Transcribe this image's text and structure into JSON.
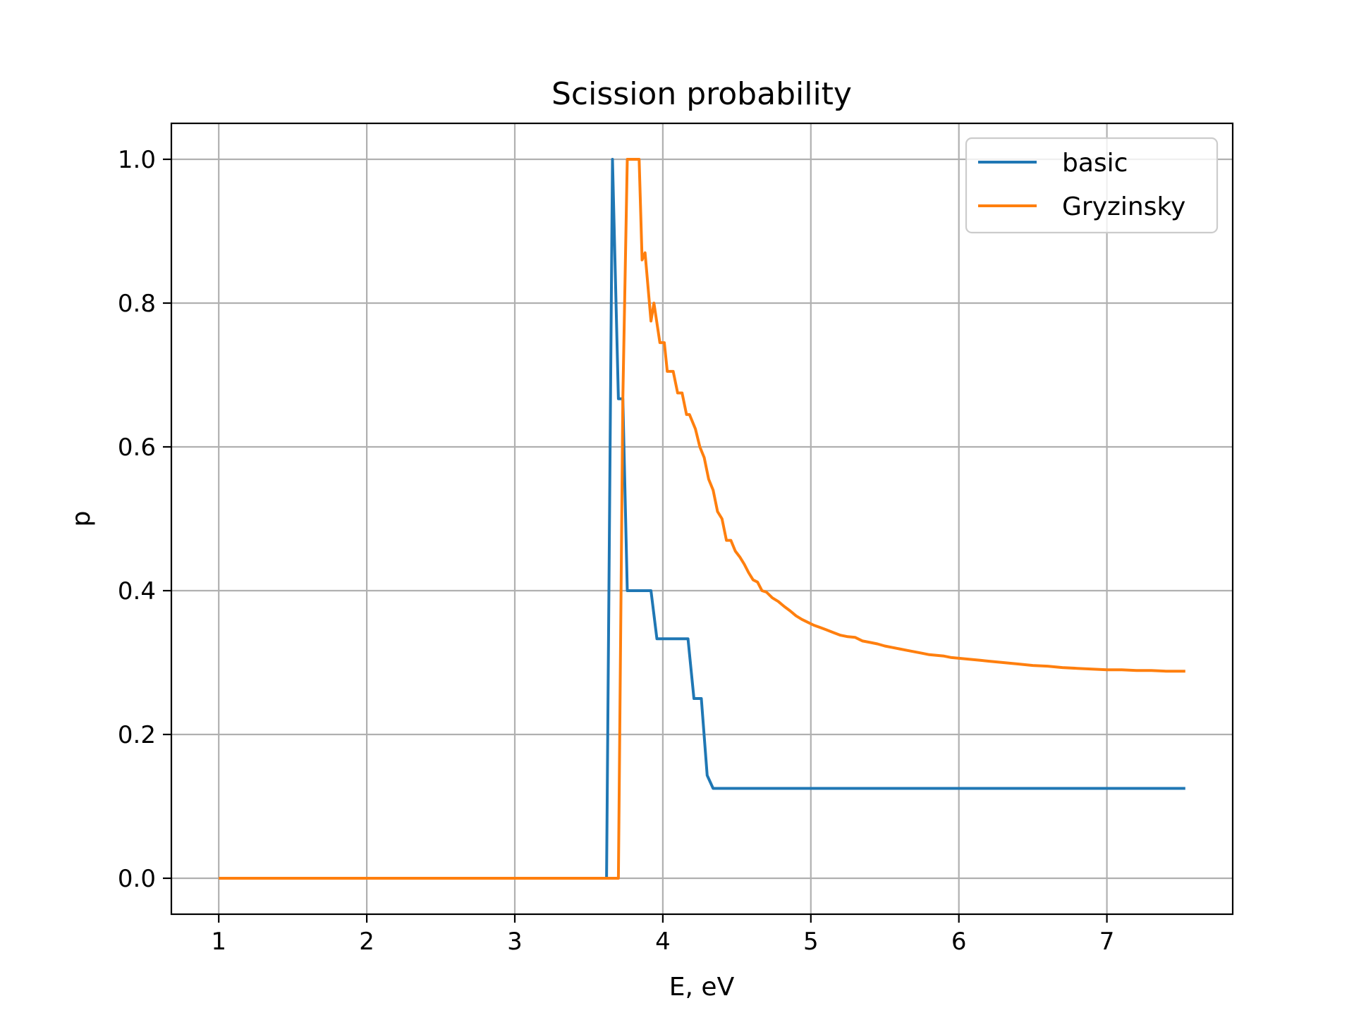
{
  "chart_data": {
    "type": "line",
    "title": "Scission probability",
    "xlabel": "E, eV",
    "ylabel": "p",
    "xlim": [
      0.68,
      7.85
    ],
    "ylim": [
      -0.05,
      1.05
    ],
    "x_ticks": [
      1,
      2,
      3,
      4,
      5,
      6,
      7
    ],
    "x_tick_labels": [
      "1",
      "2",
      "3",
      "4",
      "5",
      "6",
      "7"
    ],
    "y_ticks": [
      0.0,
      0.2,
      0.4,
      0.6,
      0.8,
      1.0
    ],
    "y_tick_labels": [
      "0.0",
      "0.2",
      "0.4",
      "0.6",
      "0.8",
      "1.0"
    ],
    "grid": true,
    "legend": {
      "position": "top-right",
      "entries": [
        "basic",
        "Gryzinsky"
      ]
    },
    "series": [
      {
        "name": "basic",
        "color": "#1f77b4",
        "x": [
          1.0,
          3.62,
          3.66,
          3.7,
          3.73,
          3.76,
          3.92,
          3.96,
          4.17,
          4.21,
          4.26,
          4.3,
          4.34,
          7.53
        ],
        "y": [
          0.0,
          0.0,
          1.0,
          0.667,
          0.667,
          0.4,
          0.4,
          0.333,
          0.333,
          0.25,
          0.25,
          0.143,
          0.125,
          0.125
        ]
      },
      {
        "name": "Gryzinsky",
        "color": "#ff7f0e",
        "x": [
          1.0,
          3.7,
          3.73,
          3.76,
          3.8,
          3.84,
          3.86,
          3.88,
          3.92,
          3.94,
          3.98,
          4.01,
          4.03,
          4.07,
          4.1,
          4.13,
          4.16,
          4.18,
          4.22,
          4.25,
          4.28,
          4.31,
          4.34,
          4.37,
          4.4,
          4.43,
          4.46,
          4.49,
          4.52,
          4.55,
          4.58,
          4.61,
          4.64,
          4.67,
          4.7,
          4.74,
          4.78,
          4.82,
          4.86,
          4.9,
          4.94,
          4.98,
          5.02,
          5.06,
          5.1,
          5.15,
          5.2,
          5.25,
          5.3,
          5.35,
          5.4,
          5.45,
          5.5,
          5.55,
          5.6,
          5.65,
          5.7,
          5.75,
          5.8,
          5.85,
          5.9,
          5.95,
          6.0,
          6.05,
          6.1,
          6.15,
          6.2,
          6.25,
          6.3,
          6.35,
          6.4,
          6.5,
          6.6,
          6.7,
          6.8,
          6.9,
          7.0,
          7.1,
          7.2,
          7.3,
          7.4,
          7.53
        ],
        "y": [
          0.0,
          0.0,
          0.667,
          1.0,
          1.0,
          1.0,
          0.86,
          0.87,
          0.775,
          0.8,
          0.745,
          0.745,
          0.705,
          0.705,
          0.675,
          0.675,
          0.645,
          0.645,
          0.625,
          0.6,
          0.585,
          0.555,
          0.54,
          0.51,
          0.5,
          0.47,
          0.47,
          0.455,
          0.447,
          0.437,
          0.425,
          0.415,
          0.412,
          0.4,
          0.398,
          0.39,
          0.385,
          0.378,
          0.372,
          0.365,
          0.36,
          0.356,
          0.352,
          0.349,
          0.346,
          0.342,
          0.338,
          0.336,
          0.335,
          0.33,
          0.328,
          0.326,
          0.323,
          0.321,
          0.319,
          0.317,
          0.315,
          0.313,
          0.311,
          0.31,
          0.309,
          0.307,
          0.306,
          0.305,
          0.304,
          0.303,
          0.302,
          0.301,
          0.3,
          0.299,
          0.298,
          0.296,
          0.295,
          0.293,
          0.292,
          0.291,
          0.29,
          0.29,
          0.289,
          0.289,
          0.288,
          0.288
        ]
      }
    ]
  }
}
